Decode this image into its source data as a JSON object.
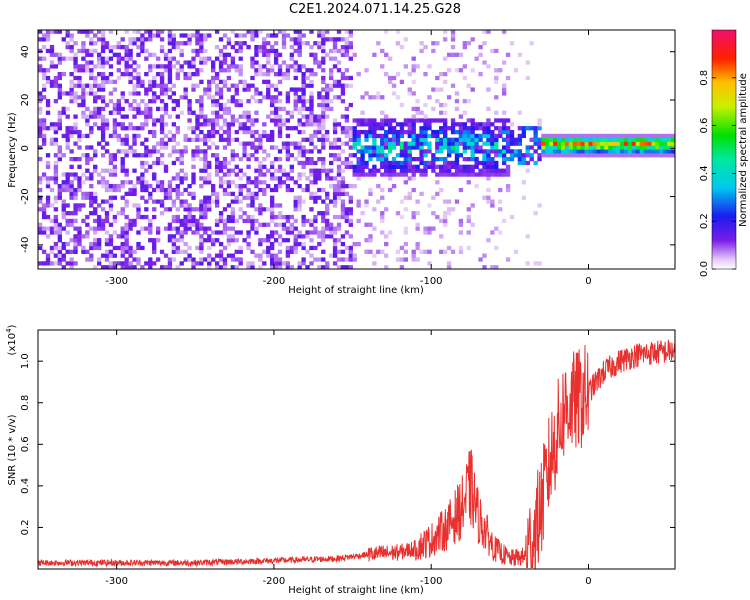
{
  "title": "C2E1.2024.071.14.25.G28",
  "chart_data": [
    {
      "type": "heatmap",
      "xlabel": "Height of straight line (km)",
      "ylabel": "Frequency (Hz)",
      "xlim": [
        -350,
        55
      ],
      "ylim": [
        -50,
        49
      ],
      "x_ticks": [
        -300,
        -200,
        -100,
        0
      ],
      "x_tick_labels": [
        "-300",
        "-200",
        "-100",
        "0"
      ],
      "y_ticks": [
        -40,
        -20,
        0,
        20,
        40
      ],
      "y_tick_labels": [
        "-40",
        "-20",
        "0",
        "20",
        "40"
      ],
      "colorbar": {
        "label": "Normalized spectral amplitude",
        "range": [
          0,
          1
        ],
        "ticks": [
          0.0,
          0.2,
          0.4,
          0.6,
          0.8
        ],
        "tick_labels": [
          "0.0",
          "0.2",
          "0.4",
          "0.6",
          "0.8"
        ],
        "colormap": "rainbow"
      },
      "features": [
        {
          "x_range": [
            -350,
            -150
          ],
          "freq_range": [
            -50,
            49
          ],
          "amplitude": 0.1
        },
        {
          "x_range": [
            -150,
            -50
          ],
          "freq_range": [
            -12,
            12
          ],
          "amplitude": 0.3
        },
        {
          "x_range": [
            -30,
            55
          ],
          "freq_center": 1,
          "freq_halfwidth": 3,
          "amplitude": 0.9
        }
      ],
      "grid": false
    },
    {
      "type": "line",
      "xlabel": "Height of straight line (km)",
      "ylabel": "SNR (10 * v/v)",
      "multiplier_label": "(x10",
      "multiplier_exponent": "4",
      "multiplier_close": ")",
      "xlim": [
        -350,
        55
      ],
      "ylim": [
        0,
        1.15
      ],
      "x_ticks": [
        -300,
        -200,
        -100,
        0
      ],
      "x_tick_labels": [
        "-300",
        "-200",
        "-100",
        "0"
      ],
      "y_ticks": [
        0.2,
        0.4,
        0.6,
        0.8,
        1.0
      ],
      "y_tick_labels": [
        "0.2",
        "0.4",
        "0.6",
        "0.8",
        "1.0"
      ],
      "series": [
        {
          "color": "#e8312e",
          "x": [
            -350,
            -300,
            -250,
            -200,
            -160,
            -140,
            -120,
            -110,
            -100,
            -90,
            -80,
            -75,
            -70,
            -60,
            -50,
            -40,
            -35,
            -30,
            -25,
            -20,
            -15,
            -10,
            -5,
            0,
            10,
            20,
            30,
            40,
            55
          ],
          "y": [
            0.03,
            0.03,
            0.03,
            0.04,
            0.05,
            0.07,
            0.08,
            0.1,
            0.14,
            0.2,
            0.3,
            0.4,
            0.25,
            0.1,
            0.05,
            0.06,
            0.15,
            0.3,
            0.5,
            0.65,
            0.78,
            0.8,
            0.82,
            0.85,
            0.95,
            1.0,
            1.03,
            1.04,
            1.05
          ]
        }
      ],
      "grid": false
    }
  ]
}
